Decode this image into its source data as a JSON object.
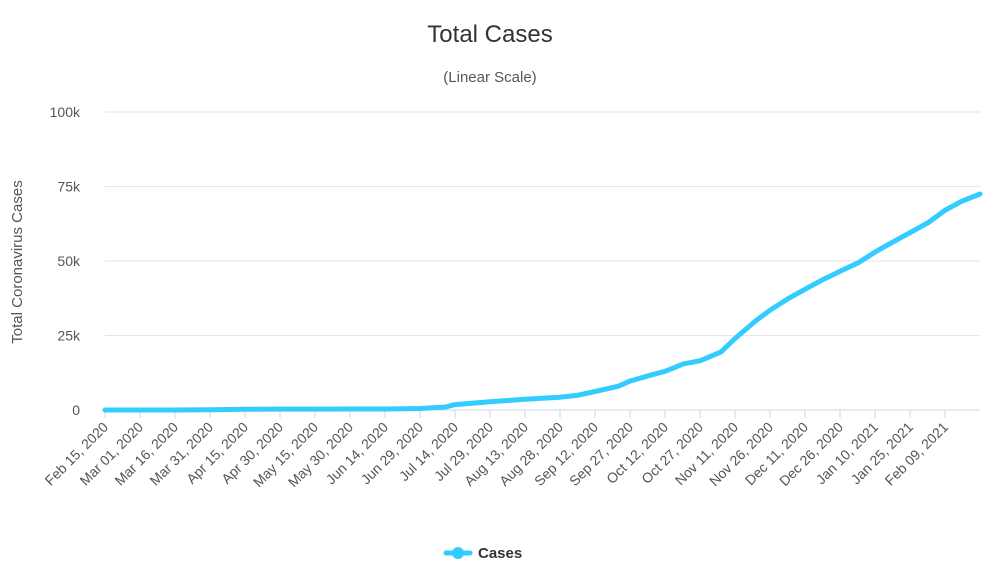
{
  "chart_data": {
    "type": "line",
    "title": "Total Cases",
    "subtitle": "(Linear Scale)",
    "ylabel": "Total Coronavirus Cases",
    "xlabel": "",
    "ylim": [
      0,
      100000
    ],
    "yticks": [
      {
        "value": 0,
        "label": "0"
      },
      {
        "value": 25000,
        "label": "25k"
      },
      {
        "value": 50000,
        "label": "50k"
      },
      {
        "value": 75000,
        "label": "75k"
      },
      {
        "value": 100000,
        "label": "100k"
      }
    ],
    "xlim": [
      "2020-02-15",
      "2021-02-24"
    ],
    "xticks": [
      {
        "date": "2020-02-15",
        "label": "Feb 15, 2020"
      },
      {
        "date": "2020-03-01",
        "label": "Mar 01, 2020"
      },
      {
        "date": "2020-03-16",
        "label": "Mar 16, 2020"
      },
      {
        "date": "2020-03-31",
        "label": "Mar 31, 2020"
      },
      {
        "date": "2020-04-15",
        "label": "Apr 15, 2020"
      },
      {
        "date": "2020-04-30",
        "label": "Apr 30, 2020"
      },
      {
        "date": "2020-05-15",
        "label": "May 15, 2020"
      },
      {
        "date": "2020-05-30",
        "label": "May 30, 2020"
      },
      {
        "date": "2020-06-14",
        "label": "Jun 14, 2020"
      },
      {
        "date": "2020-06-29",
        "label": "Jun 29, 2020"
      },
      {
        "date": "2020-07-14",
        "label": "Jul 14, 2020"
      },
      {
        "date": "2020-07-29",
        "label": "Jul 29, 2020"
      },
      {
        "date": "2020-08-13",
        "label": "Aug 13, 2020"
      },
      {
        "date": "2020-08-28",
        "label": "Aug 28, 2020"
      },
      {
        "date": "2020-09-12",
        "label": "Sep 12, 2020"
      },
      {
        "date": "2020-09-27",
        "label": "Sep 27, 2020"
      },
      {
        "date": "2020-10-12",
        "label": "Oct 12, 2020"
      },
      {
        "date": "2020-10-27",
        "label": "Oct 27, 2020"
      },
      {
        "date": "2020-11-11",
        "label": "Nov 11, 2020"
      },
      {
        "date": "2020-11-26",
        "label": "Nov 26, 2020"
      },
      {
        "date": "2020-12-11",
        "label": "Dec 11, 2020"
      },
      {
        "date": "2020-12-26",
        "label": "Dec 26, 2020"
      },
      {
        "date": "2021-01-10",
        "label": "Jan 10, 2021"
      },
      {
        "date": "2021-01-25",
        "label": "Jan 25, 2021"
      },
      {
        "date": "2021-02-09",
        "label": "Feb 09, 2021"
      }
    ],
    "grid": true,
    "legend_position": "bottom-center",
    "series": [
      {
        "name": "Cases",
        "color": "#33ccff",
        "points": [
          {
            "x": "2020-02-15",
            "y": 0
          },
          {
            "x": "2020-03-01",
            "y": 0
          },
          {
            "x": "2020-03-16",
            "y": 0
          },
          {
            "x": "2020-03-31",
            "y": 100
          },
          {
            "x": "2020-04-15",
            "y": 250
          },
          {
            "x": "2020-04-30",
            "y": 300
          },
          {
            "x": "2020-05-15",
            "y": 310
          },
          {
            "x": "2020-05-30",
            "y": 320
          },
          {
            "x": "2020-06-14",
            "y": 350
          },
          {
            "x": "2020-06-29",
            "y": 500
          },
          {
            "x": "2020-07-10",
            "y": 1000
          },
          {
            "x": "2020-07-14",
            "y": 1800
          },
          {
            "x": "2020-07-29",
            "y": 2800
          },
          {
            "x": "2020-08-13",
            "y": 3600
          },
          {
            "x": "2020-08-28",
            "y": 4300
          },
          {
            "x": "2020-09-05",
            "y": 5000
          },
          {
            "x": "2020-09-12",
            "y": 6200
          },
          {
            "x": "2020-09-22",
            "y": 8000
          },
          {
            "x": "2020-09-27",
            "y": 9700
          },
          {
            "x": "2020-10-05",
            "y": 11500
          },
          {
            "x": "2020-10-12",
            "y": 13000
          },
          {
            "x": "2020-10-20",
            "y": 15500
          },
          {
            "x": "2020-10-27",
            "y": 16500
          },
          {
            "x": "2020-11-05",
            "y": 19500
          },
          {
            "x": "2020-11-11",
            "y": 24000
          },
          {
            "x": "2020-11-20",
            "y": 30000
          },
          {
            "x": "2020-11-26",
            "y": 33500
          },
          {
            "x": "2020-12-04",
            "y": 37500
          },
          {
            "x": "2020-12-11",
            "y": 40500
          },
          {
            "x": "2020-12-18",
            "y": 43500
          },
          {
            "x": "2020-12-26",
            "y": 46500
          },
          {
            "x": "2021-01-03",
            "y": 49500
          },
          {
            "x": "2021-01-10",
            "y": 53000
          },
          {
            "x": "2021-01-18",
            "y": 56500
          },
          {
            "x": "2021-01-25",
            "y": 59500
          },
          {
            "x": "2021-02-02",
            "y": 63000
          },
          {
            "x": "2021-02-09",
            "y": 67000
          },
          {
            "x": "2021-02-16",
            "y": 70000
          },
          {
            "x": "2021-02-24",
            "y": 72500
          }
        ]
      }
    ]
  }
}
